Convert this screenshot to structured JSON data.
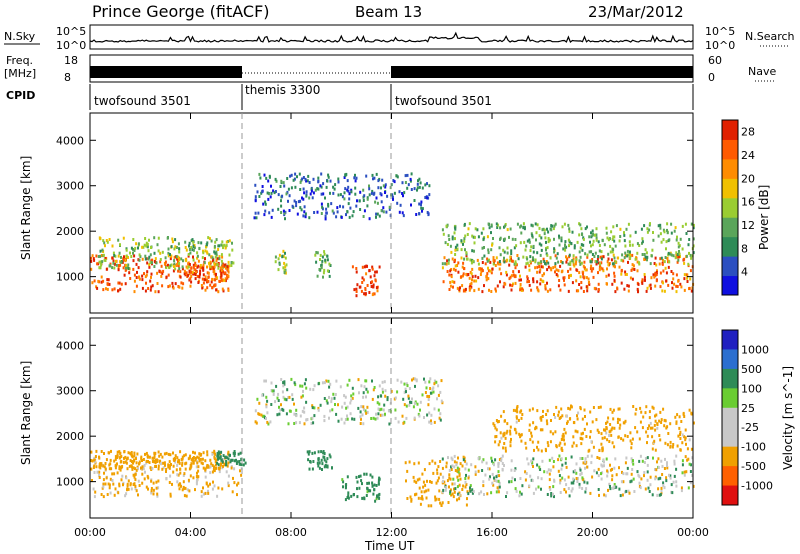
{
  "header": {
    "station": "Prince George (fitACF)",
    "beam": "Beam 13",
    "date": "23/Mar/2012"
  },
  "panels": {
    "nsky": {
      "label": "N.Sky",
      "tick_hi": "10^5",
      "tick_lo": "10^0",
      "right_label": "N.Search"
    },
    "freq": {
      "label_top": "Freq.",
      "label_bottom": "[MHz]",
      "tick_hi": "18",
      "tick_lo": "8",
      "right_hi": "60",
      "right_lo": "0",
      "right_label": "Nave"
    },
    "cpid": {
      "label": "CPID",
      "segments": [
        {
          "name": "twofsound 3501",
          "start": 0,
          "end": 6
        },
        {
          "name": "themis 3300",
          "start": 6,
          "end": 12
        },
        {
          "name": "twofsound 3501",
          "start": 12,
          "end": 24
        }
      ]
    }
  },
  "colors": {
    "power": [
      "#1010e0",
      "#2b4fc0",
      "#2e8b57",
      "#5aa55a",
      "#9acd32",
      "#f0c000",
      "#ff8c00",
      "#ff5a00",
      "#e02000"
    ],
    "velocity": [
      "#2020c0",
      "#2b6fd0",
      "#2e8b57",
      "#6acd32",
      "#c8c8c8",
      "#c8c8c8",
      "#f0a000",
      "#ff6000",
      "#e01010"
    ]
  },
  "chart_data": [
    {
      "type": "heatmap",
      "title": "",
      "ylabel": "Slant Range [km]",
      "xlabel": "Time UT",
      "xlim": [
        0,
        24
      ],
      "ylim": [
        200,
        4600
      ],
      "x_ticks": [
        "00:00",
        "04:00",
        "08:00",
        "12:00",
        "16:00",
        "20:00",
        "00:00"
      ],
      "y_ticks": [
        1000,
        2000,
        3000,
        4000
      ],
      "colorbar": {
        "label": "Power [dB]",
        "ticks": [
          "4",
          "8",
          "12",
          "16",
          "20",
          "24",
          "28"
        ],
        "range": [
          0,
          30
        ]
      },
      "regions": [
        {
          "t0": 0.0,
          "t1": 5.5,
          "r0": 700,
          "r1": 1500,
          "level": 26
        },
        {
          "t0": 0.3,
          "t1": 5.7,
          "r0": 1200,
          "r1": 1900,
          "level": 14
        },
        {
          "t0": 3.8,
          "t1": 5.5,
          "r0": 900,
          "r1": 1300,
          "level": 24
        },
        {
          "t0": 7.3,
          "t1": 7.8,
          "r0": 1100,
          "r1": 1600,
          "level": 14
        },
        {
          "t0": 8.9,
          "t1": 9.6,
          "r0": 1000,
          "r1": 1600,
          "level": 12
        },
        {
          "t0": 10.4,
          "t1": 11.5,
          "r0": 600,
          "r1": 1300,
          "level": 28
        },
        {
          "t0": 14.0,
          "t1": 24.0,
          "r0": 700,
          "r1": 1500,
          "level": 24
        },
        {
          "t0": 14.0,
          "t1": 24.0,
          "r0": 1300,
          "r1": 2200,
          "level": 12
        },
        {
          "t0": 6.5,
          "t1": 13.5,
          "r0": 2300,
          "r1": 3300,
          "level": 6
        }
      ]
    },
    {
      "type": "heatmap",
      "title": "",
      "ylabel": "Slant Range [km]",
      "xlabel": "Time UT",
      "xlim": [
        0,
        24
      ],
      "ylim": [
        200,
        4600
      ],
      "x_ticks": [
        "00:00",
        "04:00",
        "08:00",
        "12:00",
        "16:00",
        "20:00",
        "00:00"
      ],
      "y_ticks": [
        1000,
        2000,
        3000,
        4000
      ],
      "colorbar": {
        "label": "Velocity [m s^-1]",
        "ticks": [
          "1000",
          "500",
          "100",
          "25",
          "-25",
          "-100",
          "-500",
          "-1000"
        ]
      },
      "regions": [
        {
          "t0": 0.0,
          "t1": 6.0,
          "r0": 700,
          "r1": 1500,
          "vel": -100
        },
        {
          "t0": 0.0,
          "t1": 5.5,
          "r0": 1300,
          "r1": 1700,
          "vel": -150
        },
        {
          "t0": 5.0,
          "t1": 6.2,
          "r0": 1400,
          "r1": 1700,
          "vel": 150
        },
        {
          "t0": 8.6,
          "t1": 9.6,
          "r0": 1300,
          "r1": 1700,
          "vel": 200
        },
        {
          "t0": 10.0,
          "t1": 11.5,
          "r0": 600,
          "r1": 1200,
          "vel": 150
        },
        {
          "t0": 12.5,
          "t1": 15.0,
          "r0": 500,
          "r1": 1500,
          "vel": -200
        },
        {
          "t0": 14.0,
          "t1": 24.0,
          "r0": 700,
          "r1": 1600,
          "vel": 0
        },
        {
          "t0": 6.5,
          "t1": 14.0,
          "r0": 2300,
          "r1": 3300,
          "vel": 0
        },
        {
          "t0": 16.0,
          "t1": 24.0,
          "r0": 1700,
          "r1": 2700,
          "vel": -150
        }
      ]
    }
  ]
}
